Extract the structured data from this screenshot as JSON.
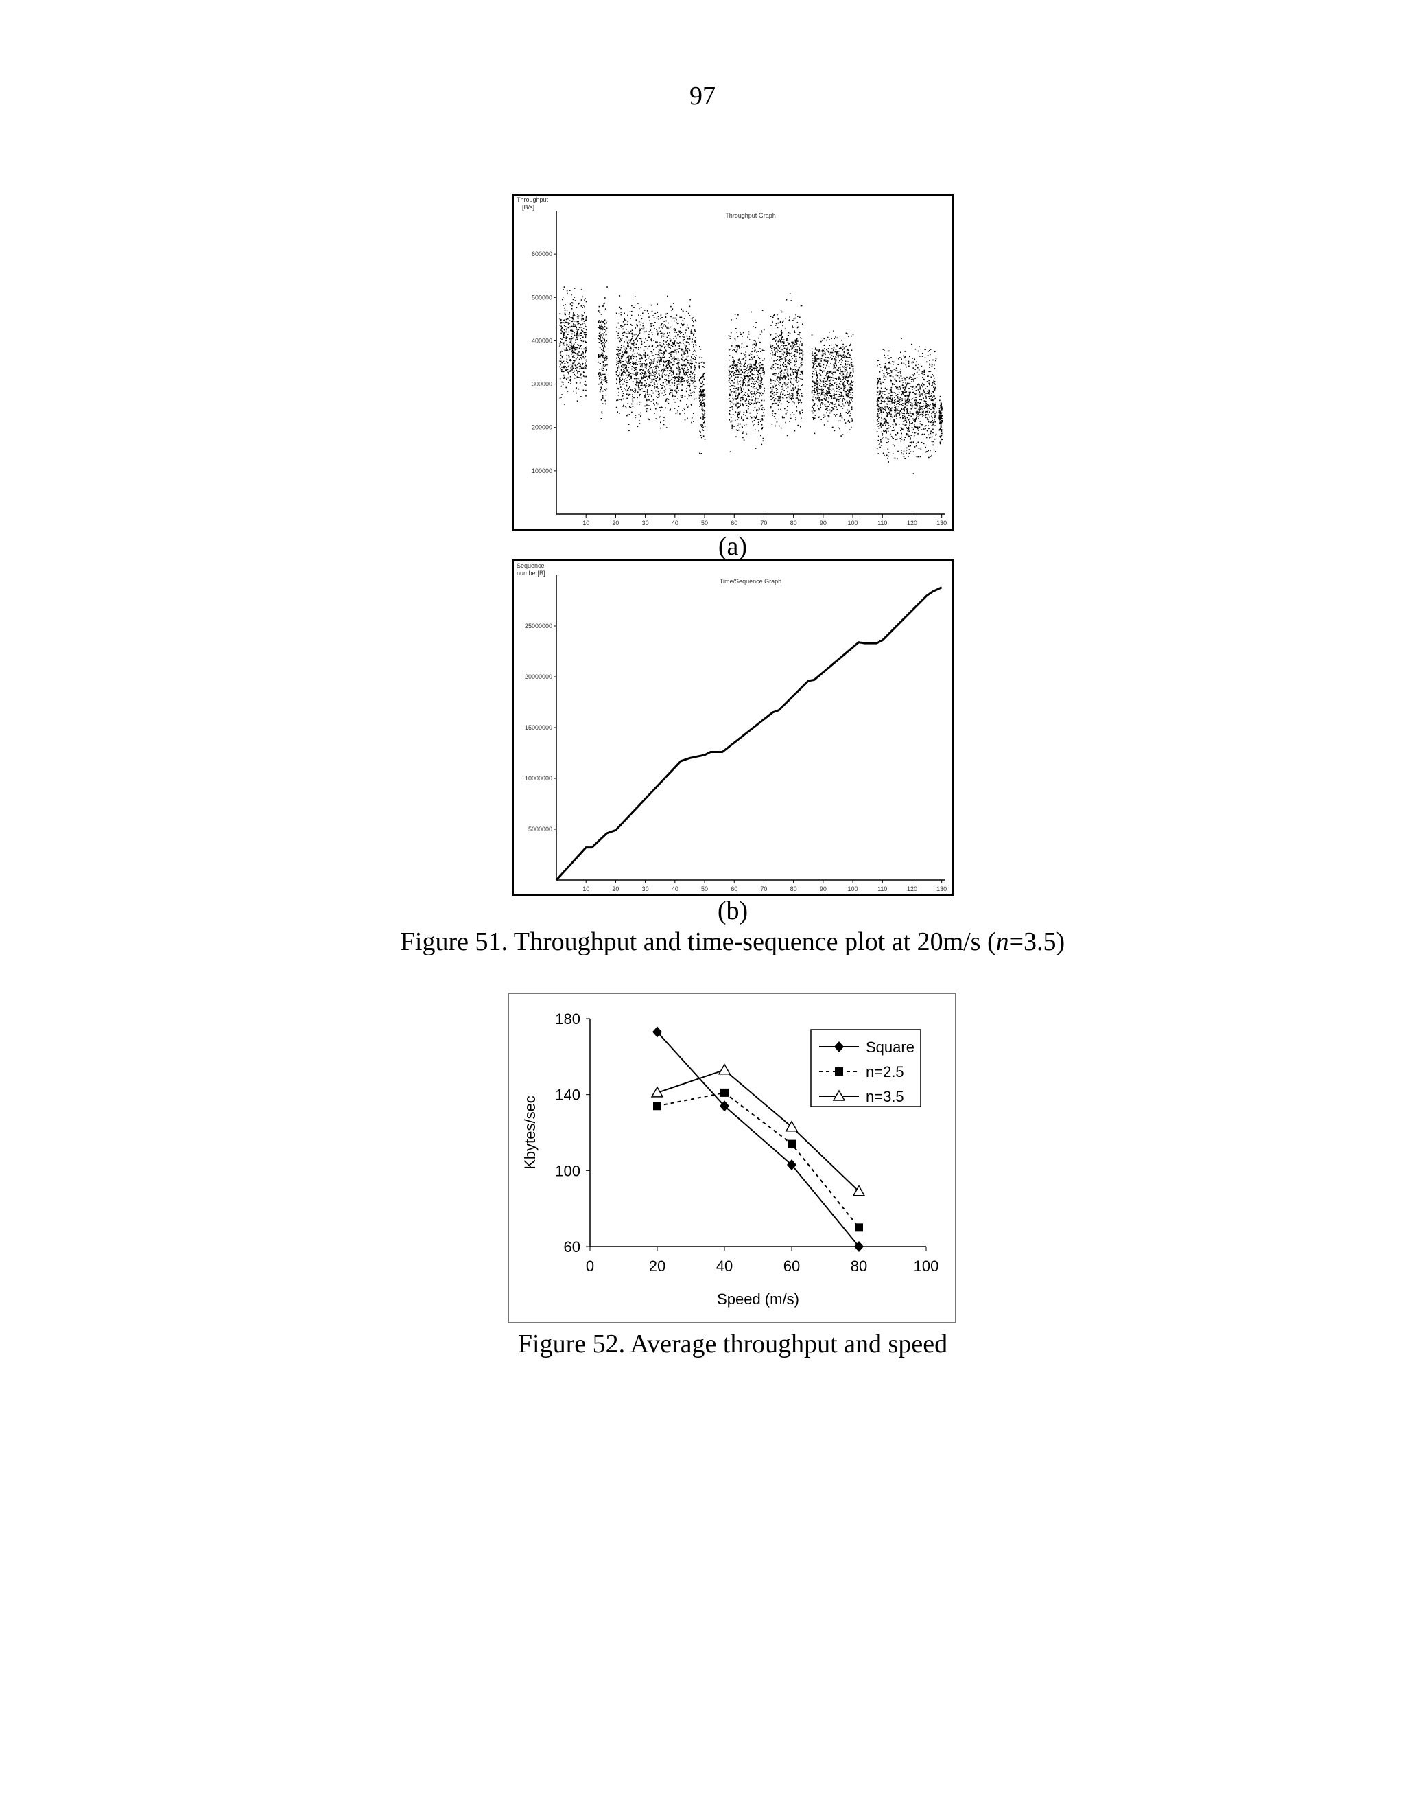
{
  "page": {
    "number": "97"
  },
  "figure51": {
    "panel_a": {
      "label": "(a)",
      "chart_data": {
        "type": "scatter",
        "title": "Throughput Graph",
        "ylabel": "Throughput [B/s]",
        "xlabel": "",
        "xlim": [
          0,
          131
        ],
        "ylim": [
          0,
          700000
        ],
        "xticks": [
          10,
          20,
          30,
          40,
          50,
          60,
          70,
          80,
          90,
          100,
          110,
          120,
          130
        ],
        "yticks": [
          100000,
          200000,
          300000,
          400000,
          500000,
          600000
        ],
        "clusters": [
          {
            "x": [
              1,
              10
            ],
            "y": [
              300000,
              500000
            ]
          },
          {
            "x": [
              14,
              17
            ],
            "y": [
              260000,
              480000
            ]
          },
          {
            "x": [
              20,
              47
            ],
            "y": [
              240000,
              460000
            ]
          },
          {
            "x": [
              48,
              50
            ],
            "y": [
              180000,
              360000
            ]
          },
          {
            "x": [
              58,
              70
            ],
            "y": [
              200000,
              420000
            ]
          },
          {
            "x": [
              72,
              83
            ],
            "y": [
              220000,
              460000
            ]
          },
          {
            "x": [
              86,
              100
            ],
            "y": [
              220000,
              400000
            ]
          },
          {
            "x": [
              108,
              128
            ],
            "y": [
              150000,
              360000
            ]
          },
          {
            "x": [
              129,
              130
            ],
            "y": [
              170000,
              260000
            ]
          }
        ]
      }
    },
    "panel_b": {
      "label": "(b)",
      "chart_data": {
        "type": "line",
        "title": "Time/Sequence Graph",
        "ylabel": "Sequence number[B]",
        "xlabel": "",
        "xlim": [
          0,
          131
        ],
        "ylim": [
          0,
          30000000
        ],
        "xticks": [
          10,
          20,
          30,
          40,
          50,
          60,
          70,
          80,
          90,
          100,
          110,
          120,
          130
        ],
        "yticks": [
          5000000,
          10000000,
          15000000,
          20000000,
          25000000
        ],
        "x": [
          0,
          10,
          12,
          17,
          20,
          42,
          45,
          50,
          52,
          55,
          56,
          73,
          75,
          85,
          87,
          102,
          104,
          108,
          110,
          125,
          127,
          130
        ],
        "y": [
          0,
          3200000,
          3200000,
          4600000,
          4900000,
          11700000,
          12000000,
          12300000,
          12600000,
          12600000,
          12600000,
          16500000,
          16700000,
          19600000,
          19700000,
          23400000,
          23300000,
          23300000,
          23600000,
          28000000,
          28400000,
          28800000
        ]
      }
    },
    "caption_prefix": "Figure 51. Throughput and time-sequence plot at 20m/s (",
    "caption_italic": "n",
    "caption_suffix": "=3.5)"
  },
  "figure52": {
    "caption": "Figure 52. Average throughput and speed",
    "chart_data": {
      "type": "line",
      "title": "",
      "xlabel": "Speed (m/s)",
      "ylabel": "Kbytes/sec",
      "xlim": [
        0,
        100
      ],
      "ylim": [
        60,
        180
      ],
      "xticks": [
        0,
        20,
        40,
        60,
        80,
        100
      ],
      "yticks": [
        60,
        100,
        140,
        180
      ],
      "legend_position": "top-right",
      "x": [
        20,
        40,
        60,
        80
      ],
      "series": [
        {
          "name": "Square",
          "values": [
            173,
            134,
            103,
            60
          ]
        },
        {
          "name": "n=2.5",
          "values": [
            134,
            141,
            114,
            70
          ]
        },
        {
          "name": "n=3.5",
          "values": [
            141,
            153,
            123,
            89
          ]
        }
      ]
    }
  }
}
